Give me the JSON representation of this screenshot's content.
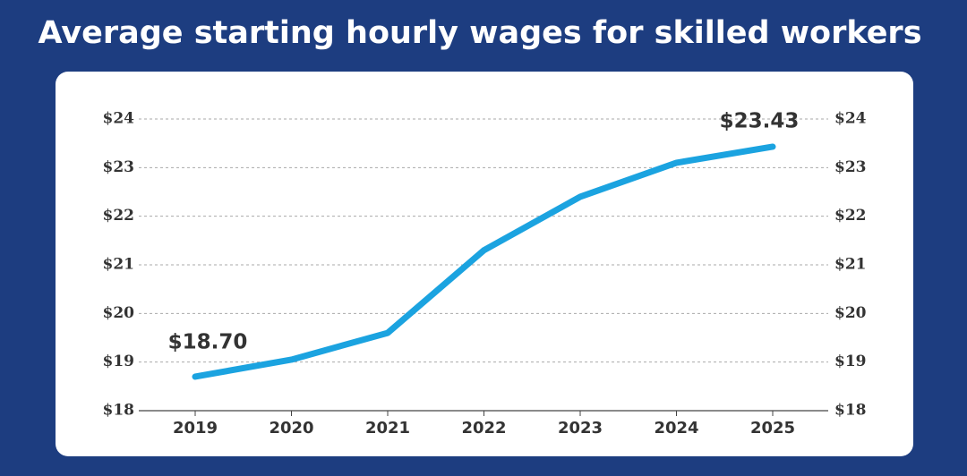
{
  "chart_data": {
    "type": "line",
    "title": "Average starting hourly wages for skilled workers",
    "categories": [
      "2019",
      "2020",
      "2021",
      "2022",
      "2023",
      "2024",
      "2025"
    ],
    "values": [
      18.7,
      19.05,
      19.6,
      21.3,
      22.4,
      23.1,
      23.43
    ],
    "value_labels": [
      "$18.70",
      null,
      null,
      null,
      null,
      null,
      "$23.43"
    ],
    "color": "#1ba3e0",
    "ylim": [
      18,
      24
    ],
    "yticks": [
      {
        "value": 18,
        "label": "$18"
      },
      {
        "value": 19,
        "label": "$19"
      },
      {
        "value": 20,
        "label": "$20"
      },
      {
        "value": 21,
        "label": "$21"
      },
      {
        "value": 22,
        "label": "$22"
      },
      {
        "value": 23,
        "label": "$23"
      },
      {
        "value": 24,
        "label": "$24"
      }
    ],
    "y2lim": [
      18,
      24
    ],
    "y2ticks": [
      {
        "value": 18,
        "label": "$18"
      },
      {
        "value": 19,
        "label": "$19"
      },
      {
        "value": 20,
        "label": "$20"
      },
      {
        "value": 21,
        "label": "$21"
      },
      {
        "value": 22,
        "label": "$22"
      },
      {
        "value": 23,
        "label": "$23"
      },
      {
        "value": 24,
        "label": "$24"
      }
    ],
    "grid": true
  }
}
